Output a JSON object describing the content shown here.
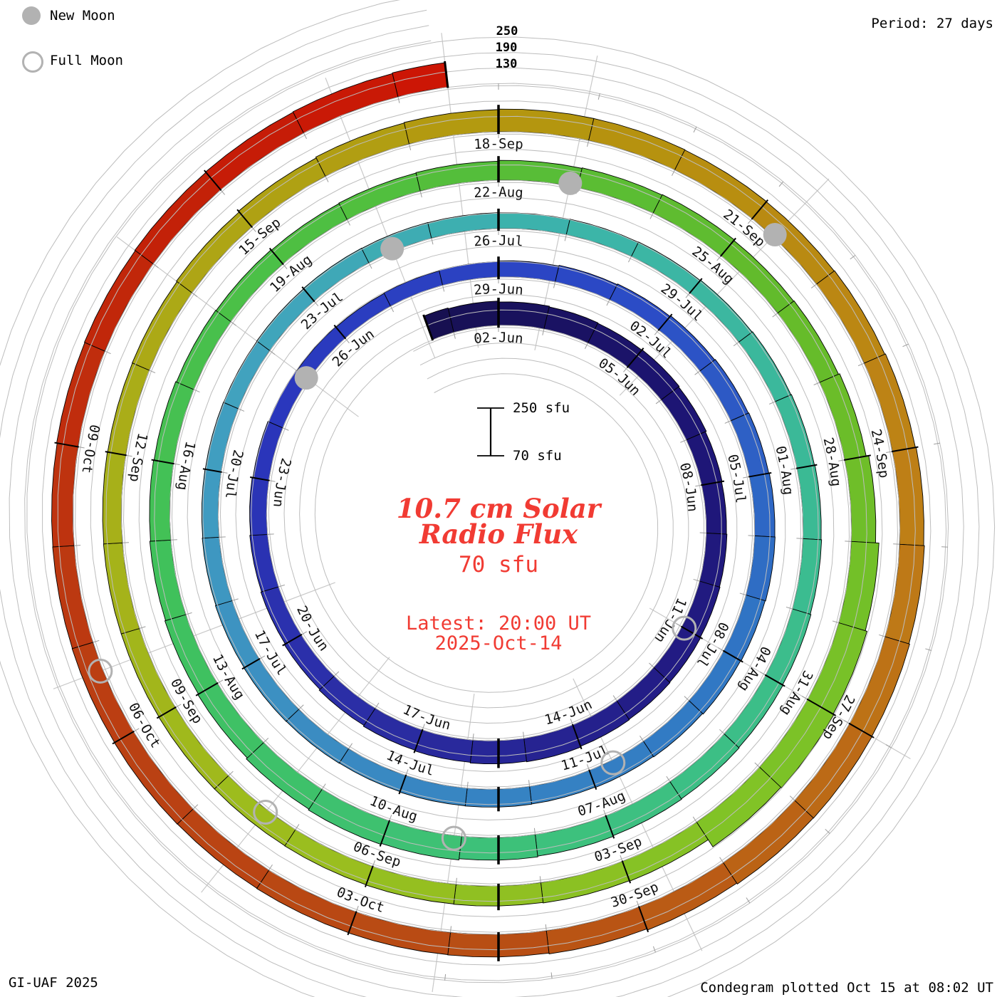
{
  "header": {
    "period_label": "Period: 27 days"
  },
  "legend": {
    "new_moon_label": "New Moon",
    "full_moon_label": "Full Moon",
    "marker_color": "#b2b2b2"
  },
  "footer": {
    "credit": "GI-UAF 2025",
    "plotted": "Condegram plotted Oct 15 at 08:02 UT"
  },
  "center": {
    "title_line1": "10.7 cm Solar",
    "title_line2": "Radio Flux",
    "baseline_value": "70 sfu",
    "latest_line1": "Latest: 20:00 UT",
    "latest_line2": "2025-Oct-14",
    "title_color": "#f13b33"
  },
  "scale_bar": {
    "top_label": "250 sfu",
    "bottom_label": "70 sfu"
  },
  "radial_axis_labels": [
    "250",
    "190",
    "130"
  ],
  "chart_data": {
    "type": "spiral_bar",
    "title": "10.7 cm Solar Radio Flux",
    "units": "sfu",
    "period_days_per_revolution": 27,
    "baseline_sfu": 70,
    "gridline_sfu": [
      70,
      130,
      190,
      250
    ],
    "start_date": "2025-05-31",
    "end_date": "2025-10-14",
    "latest_observation": "2025-10-14 20:00 UT",
    "daily_flux_sfu": [
      168,
      165,
      161,
      158,
      156,
      158,
      155,
      151,
      149,
      151,
      153,
      155,
      157,
      159,
      162,
      160,
      157,
      154,
      150,
      146,
      142,
      139,
      136,
      133,
      130,
      128,
      126,
      128,
      130,
      133,
      136,
      139,
      142,
      145,
      147,
      149,
      150,
      148,
      146,
      143,
      141,
      139,
      140,
      139,
      137,
      138,
      139,
      138,
      136,
      134,
      133,
      132,
      133,
      134,
      133,
      132,
      131,
      132,
      133,
      135,
      137,
      139,
      141,
      143,
      146,
      148,
      150,
      152,
      155,
      158,
      163,
      167,
      163,
      158,
      155,
      152,
      149,
      147,
      144,
      142,
      140,
      142,
      144,
      147,
      149,
      151,
      148,
      150,
      155,
      165,
      178,
      185,
      188,
      185,
      152,
      150,
      148,
      147,
      146,
      145,
      145,
      144,
      144,
      143,
      142,
      143,
      146,
      150,
      154,
      156,
      158,
      158,
      157,
      156,
      158,
      161,
      164,
      167,
      170,
      171,
      170,
      166,
      161,
      158,
      157,
      156,
      155,
      156,
      155,
      154,
      153,
      155,
      157,
      159,
      161,
      163,
      166
    ],
    "date_ticks": {
      "first_day_index": 2,
      "step_days": 3,
      "labels": [
        "02-Jun",
        "05-Jun",
        "08-Jun",
        "11-Jun",
        "14-Jun",
        "17-Jun",
        "20-Jun",
        "23-Jun",
        "26-Jun",
        "29-Jun",
        "02-Jul",
        "05-Jul",
        "08-Jul",
        "11-Jul",
        "14-Jul",
        "17-Jul",
        "20-Jul",
        "23-Jul",
        "26-Jul",
        "29-Jul",
        "01-Aug",
        "04-Aug",
        "07-Aug",
        "10-Aug",
        "13-Aug",
        "16-Aug",
        "19-Aug",
        "22-Aug",
        "25-Aug",
        "28-Aug",
        "31-Aug",
        "03-Sep",
        "06-Sep",
        "09-Sep",
        "12-Sep",
        "15-Sep",
        "18-Sep",
        "21-Sep",
        "24-Sep",
        "27-Sep",
        "30-Sep",
        "03-Oct",
        "06-Oct",
        "09-Oct"
      ]
    },
    "moons": {
      "new": [
        {
          "date": "2025-06-25",
          "day_index": 25.0
        },
        {
          "date": "2025-07-24",
          "day_index": 54.4
        },
        {
          "date": "2025-08-23",
          "day_index": 83.9
        },
        {
          "date": "2025-09-21",
          "day_index": 113.3
        }
      ],
      "full": [
        {
          "date": "2025-06-11",
          "day_index": 11.0
        },
        {
          "date": "2025-07-10",
          "day_index": 40.6
        },
        {
          "date": "2025-08-09",
          "day_index": 70.1
        },
        {
          "date": "2025-09-07",
          "day_index": 99.4
        },
        {
          "date": "2025-10-07",
          "day_index": 128.7
        }
      ]
    },
    "colormap": [
      [
        0,
        "#16104e"
      ],
      [
        6,
        "#1d1472"
      ],
      [
        12,
        "#221c84"
      ],
      [
        18,
        "#2b2da4"
      ],
      [
        24,
        "#2a36bc"
      ],
      [
        31,
        "#2b49c6"
      ],
      [
        38,
        "#3077c4"
      ],
      [
        45,
        "#3a8ac2"
      ],
      [
        51,
        "#41a0c0"
      ],
      [
        57,
        "#3cb4aa"
      ],
      [
        63,
        "#3bbb92"
      ],
      [
        69,
        "#3dc17b"
      ],
      [
        75,
        "#3fc15d"
      ],
      [
        81,
        "#4fbf40"
      ],
      [
        87,
        "#64bb2a"
      ],
      [
        93,
        "#7ec327"
      ],
      [
        99,
        "#9cbd1e"
      ],
      [
        105,
        "#abab17"
      ],
      [
        111,
        "#b5940e"
      ],
      [
        117,
        "#bf7d17"
      ],
      [
        123,
        "#b85014"
      ],
      [
        129,
        "#bb3c12"
      ],
      [
        134,
        "#c41e07"
      ],
      [
        137,
        "#cd1404"
      ]
    ],
    "colors": {
      "gridline": "#bdbdbd",
      "tick_gray": "#9c9c9c",
      "tick_black": "#000000",
      "bar_outline": "#000000",
      "moon_marker": "#b2b2b2",
      "moon_line": "#c9c9c9",
      "label_text": "#111111"
    }
  }
}
